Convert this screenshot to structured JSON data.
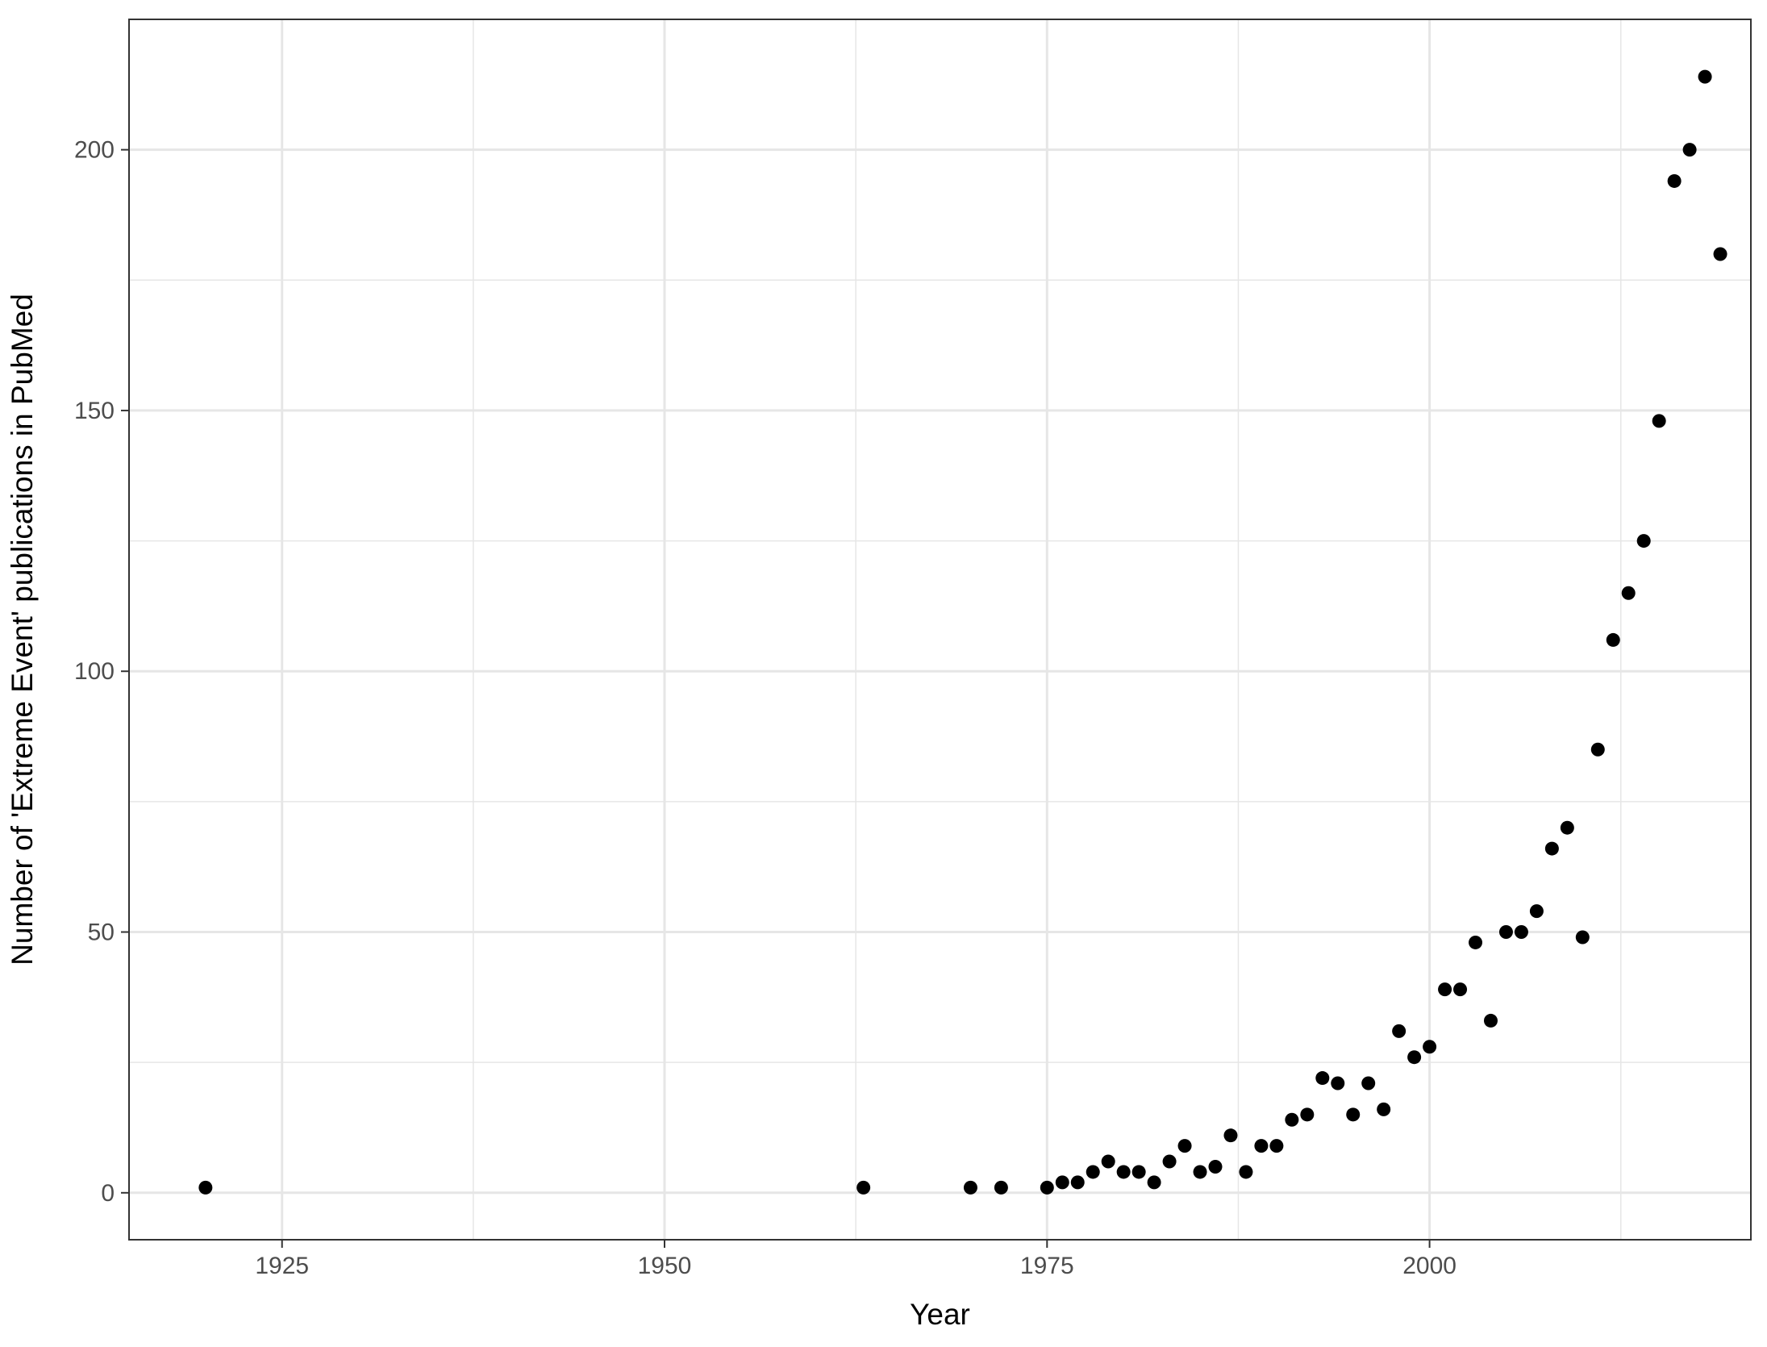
{
  "chart_data": {
    "type": "scatter",
    "title": "",
    "xlabel": "Year",
    "ylabel": "Number of 'Extreme Event' publications in PubMed",
    "xlim": [
      1915,
      2021
    ],
    "ylim": [
      -9,
      225
    ],
    "x_ticks": [
      1925,
      1950,
      1975,
      2000
    ],
    "x_minor_ticks": [
      1937.5,
      1962.5,
      1987.5,
      2012.5
    ],
    "y_ticks": [
      0,
      50,
      100,
      150,
      200
    ],
    "y_minor_ticks": [
      25,
      75,
      125,
      175
    ],
    "x_tick_labels": [
      "1925",
      "1950",
      "1975",
      "2000"
    ],
    "y_tick_labels": [
      "0",
      "50",
      "100",
      "150",
      "200"
    ],
    "grid": true,
    "legend": "none",
    "point_color": "#000000",
    "grid_color": "#e6e6e6",
    "border_color": "#333333",
    "x": [
      1920,
      1963,
      1970,
      1972,
      1975,
      1976,
      1977,
      1978,
      1979,
      1980,
      1981,
      1982,
      1983,
      1984,
      1985,
      1986,
      1987,
      1988,
      1989,
      1990,
      1991,
      1992,
      1993,
      1994,
      1995,
      1996,
      1997,
      1998,
      1999,
      2000,
      2001,
      2002,
      2003,
      2004,
      2005,
      2006,
      2007,
      2008,
      2009,
      2010,
      2011,
      2012,
      2013,
      2014,
      2015,
      2016,
      2017,
      2018,
      2019
    ],
    "y": [
      1,
      1,
      1,
      1,
      1,
      2,
      2,
      4,
      6,
      4,
      4,
      2,
      6,
      9,
      4,
      5,
      11,
      4,
      9,
      9,
      14,
      15,
      22,
      21,
      15,
      21,
      16,
      31,
      26,
      28,
      39,
      39,
      48,
      33,
      50,
      50,
      54,
      66,
      70,
      49,
      85,
      106,
      115,
      125,
      148,
      194,
      200,
      214,
      180
    ]
  }
}
